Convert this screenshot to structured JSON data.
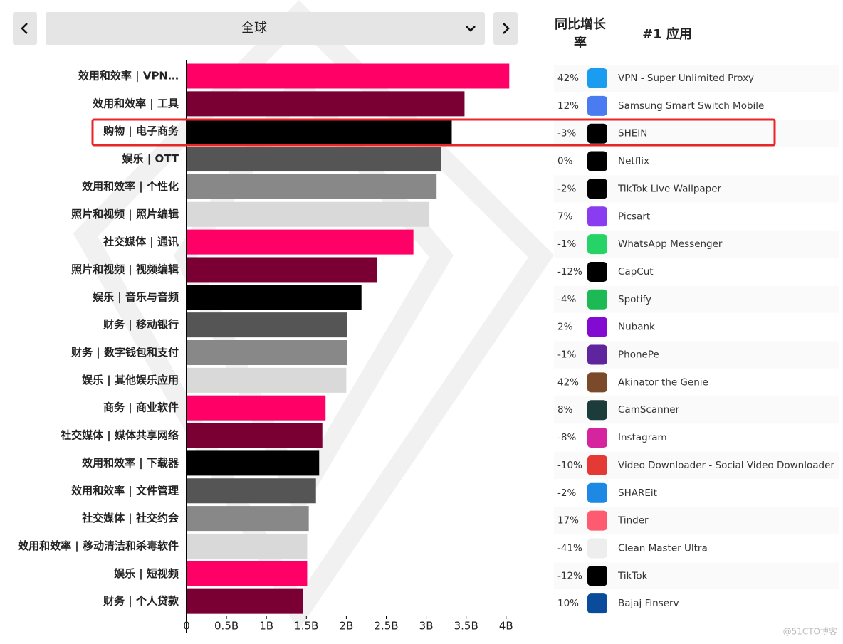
{
  "nav": {
    "region": "全球"
  },
  "chart_data": {
    "type": "barh",
    "categories": [
      "效用和效率 | VPN…",
      "效用和效率 | 工具",
      "购物 | 电子商务",
      "娱乐 | OTT",
      "效用和效率 | 个性化",
      "照片和视频 | 照片编辑",
      "社交媒体 | 通讯",
      "照片和视频 | 视频编辑",
      "娱乐 | 音乐与音频",
      "财务 | 移动银行",
      "财务 | 数字钱包和支付",
      "娱乐 | 其他娱乐应用",
      "商务 | 商业软件",
      "社交媒体 | 媒体共享网络",
      "效用和效率 | 下载器",
      "效用和效率 | 文件管理",
      "社交媒体 | 社交约会",
      "效用和效率 | 移动清洁和杀毒软件",
      "娱乐 | 短视频",
      "财务 | 个人贷款"
    ],
    "values": [
      4.04,
      3.48,
      3.32,
      3.19,
      3.13,
      3.04,
      2.84,
      2.38,
      2.19,
      2.01,
      2.01,
      2.0,
      1.74,
      1.7,
      1.66,
      1.62,
      1.53,
      1.51,
      1.51,
      1.46
    ],
    "palette": [
      "#ff0066",
      "#7a0033",
      "#000000",
      "#555555",
      "#888888",
      "#d9d9d9"
    ],
    "xlim": [
      0,
      4.1
    ],
    "xticks": [
      0,
      {
        "value": 0.5,
        "label": "0.5B"
      },
      {
        "value": 1,
        "label": "1B"
      },
      {
        "value": 1.5,
        "label": "1.5B"
      },
      {
        "value": 2,
        "label": "2B"
      },
      {
        "value": 2.5,
        "label": "2.5B"
      },
      {
        "value": 3,
        "label": "3B"
      },
      {
        "value": 3.5,
        "label": "3.5B"
      },
      {
        "value": 4,
        "label": "4B"
      }
    ]
  },
  "table": {
    "headers": [
      "同比增长",
      "率",
      "#1 应用"
    ],
    "growth": [
      "42%",
      "12%",
      "-3%",
      "0%",
      "-2%",
      "7%",
      "-1%",
      "-12%",
      "-4%",
      "2%",
      "-1%",
      "42%",
      "8%",
      "-8%",
      "-10%",
      "-2%",
      "17%",
      "-41%",
      "-12%",
      "10%"
    ],
    "apps": [
      "VPN - Super Unlimited Proxy",
      "Samsung Smart Switch Mobile",
      "SHEIN",
      "Netflix",
      "TikTok Live Wallpaper",
      "Picsart",
      "WhatsApp Messenger",
      "CapCut",
      "Spotify",
      "Nubank",
      "PhonePe",
      "Akinator the Genie",
      "CamScanner",
      "Instagram",
      "Video Downloader - Social Video Downloader",
      "SHAREit",
      "Tinder",
      "Clean Master Ultra",
      "TikTok",
      "Bajaj Finserv"
    ]
  },
  "watermark": "@51CTO博客"
}
